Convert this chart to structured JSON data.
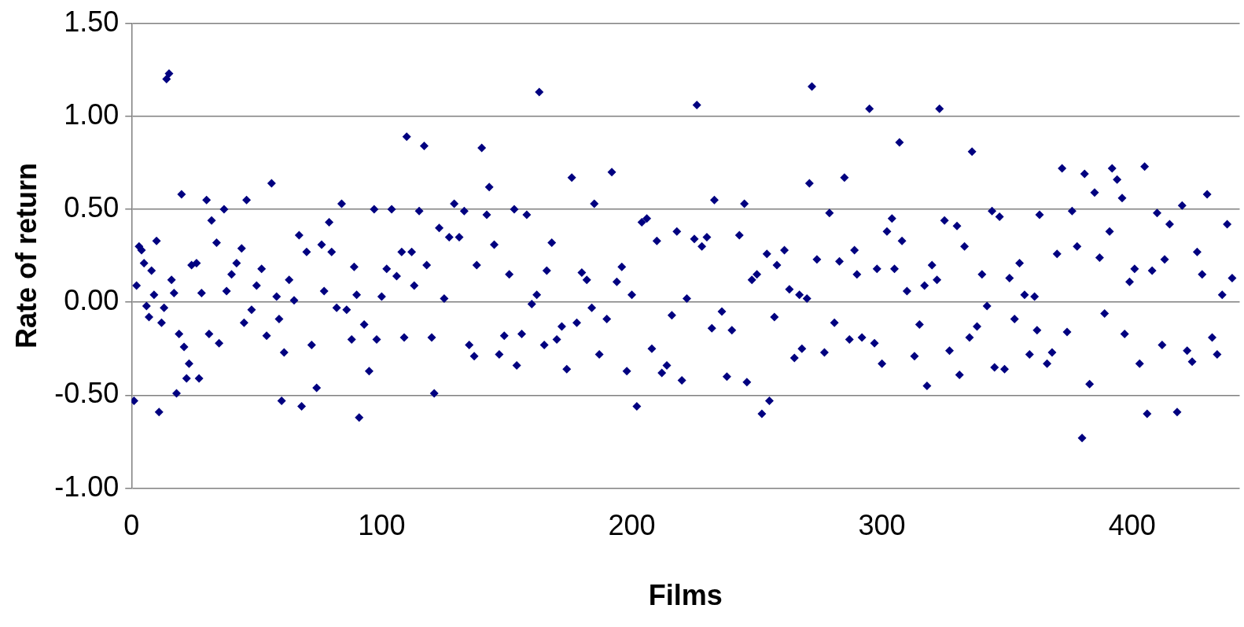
{
  "chart_data": {
    "type": "scatter",
    "xlabel": "Films",
    "ylabel": "Rate of return",
    "xlim": [
      0,
      443
    ],
    "xticks": [
      0,
      100,
      200,
      300,
      400
    ],
    "ylim": [
      -1,
      1.5
    ],
    "yticks": [
      {
        "value": -1,
        "label": "-1.00"
      },
      {
        "value": -0.5,
        "label": "-0.50"
      },
      {
        "value": 0,
        "label": "0.00"
      },
      {
        "value": 0.5,
        "label": "0.50"
      },
      {
        "value": 1,
        "label": "1.00"
      },
      {
        "value": 1.5,
        "label": "1.50"
      }
    ],
    "grid": "y",
    "legend": false,
    "marker": "diamond",
    "series": [
      {
        "color": "#000080",
        "x": [
          1,
          2,
          3,
          4,
          5,
          6,
          7,
          8,
          9,
          10,
          11,
          12,
          13,
          14,
          15,
          16,
          17,
          18,
          19,
          20,
          21,
          22,
          23,
          24,
          26,
          27,
          28,
          30,
          31,
          32,
          34,
          35,
          37,
          38,
          40,
          42,
          44,
          45,
          46,
          48,
          50,
          52,
          54,
          56,
          58,
          59,
          60,
          61,
          63,
          65,
          67,
          68,
          70,
          72,
          74,
          76,
          77,
          79,
          80,
          82,
          84,
          86,
          88,
          89,
          90,
          91,
          93,
          95,
          97,
          98,
          100,
          102,
          104,
          106,
          108,
          109,
          110,
          112,
          113,
          115,
          117,
          118,
          120,
          121,
          123,
          125,
          127,
          129,
          131,
          133,
          135,
          137,
          138,
          140,
          142,
          143,
          145,
          147,
          149,
          151,
          153,
          154,
          156,
          158,
          160,
          162,
          163,
          165,
          166,
          168,
          170,
          172,
          174,
          176,
          178,
          180,
          182,
          184,
          185,
          187,
          190,
          192,
          194,
          196,
          198,
          200,
          202,
          204,
          206,
          208,
          210,
          212,
          214,
          216,
          218,
          220,
          222,
          225,
          226,
          228,
          230,
          232,
          233,
          236,
          238,
          240,
          243,
          245,
          246,
          248,
          250,
          252,
          254,
          255,
          257,
          258,
          261,
          263,
          265,
          267,
          268,
          270,
          271,
          272,
          274,
          277,
          279,
          281,
          283,
          285,
          287,
          289,
          290,
          292,
          295,
          297,
          298,
          300,
          302,
          304,
          305,
          307,
          308,
          310,
          313,
          315,
          317,
          318,
          320,
          322,
          323,
          325,
          327,
          330,
          331,
          333,
          335,
          336,
          338,
          340,
          342,
          344,
          345,
          347,
          349,
          351,
          353,
          355,
          357,
          359,
          361,
          362,
          363,
          366,
          368,
          370,
          372,
          374,
          376,
          378,
          380,
          381,
          383,
          385,
          387,
          389,
          391,
          392,
          394,
          396,
          397,
          399,
          401,
          403,
          405,
          406,
          408,
          410,
          412,
          413,
          415,
          418,
          420,
          422,
          424,
          426,
          428,
          430,
          432,
          434,
          436,
          438,
          440
        ],
        "values": [
          -0.53,
          0.09,
          0.3,
          0.28,
          0.21,
          -0.02,
          -0.08,
          0.17,
          0.04,
          0.33,
          -0.59,
          -0.11,
          -0.03,
          1.2,
          1.23,
          0.12,
          0.05,
          -0.49,
          -0.17,
          0.58,
          -0.24,
          -0.41,
          -0.33,
          0.2,
          0.21,
          -0.41,
          0.05,
          0.55,
          -0.17,
          0.44,
          0.32,
          -0.22,
          0.5,
          0.06,
          0.15,
          0.21,
          0.29,
          -0.11,
          0.55,
          -0.04,
          0.09,
          0.18,
          -0.18,
          0.64,
          0.03,
          -0.09,
          -0.53,
          -0.27,
          0.12,
          0.01,
          0.36,
          -0.56,
          0.27,
          -0.23,
          -0.46,
          0.31,
          0.06,
          0.43,
          0.27,
          -0.03,
          0.53,
          -0.04,
          -0.2,
          0.19,
          0.04,
          -0.62,
          -0.12,
          -0.37,
          0.5,
          -0.2,
          0.03,
          0.18,
          0.5,
          0.14,
          0.27,
          -0.19,
          0.89,
          0.27,
          0.09,
          0.49,
          0.84,
          0.2,
          -0.19,
          -0.49,
          0.4,
          0.02,
          0.35,
          0.53,
          0.35,
          0.49,
          -0.23,
          -0.29,
          0.2,
          0.83,
          0.47,
          0.62,
          0.31,
          -0.28,
          -0.18,
          0.15,
          0.5,
          -0.34,
          -0.17,
          0.47,
          -0.01,
          0.04,
          1.13,
          -0.23,
          0.17,
          0.32,
          -0.2,
          -0.13,
          -0.36,
          0.67,
          -0.11,
          0.16,
          0.12,
          -0.03,
          0.53,
          -0.28,
          -0.09,
          0.7,
          0.11,
          0.19,
          -0.37,
          0.04,
          -0.56,
          0.43,
          0.45,
          -0.25,
          0.33,
          -0.38,
          -0.34,
          -0.07,
          0.38,
          -0.42,
          0.02,
          0.34,
          1.06,
          0.3,
          0.35,
          -0.14,
          0.55,
          -0.05,
          -0.4,
          -0.15,
          0.36,
          0.53,
          -0.43,
          0.12,
          0.15,
          -0.6,
          0.26,
          -0.53,
          -0.08,
          0.2,
          0.28,
          0.07,
          -0.3,
          0.04,
          -0.25,
          0.02,
          0.64,
          1.16,
          0.23,
          -0.27,
          0.48,
          -0.11,
          0.22,
          0.67,
          -0.2,
          0.28,
          0.15,
          -0.19,
          1.04,
          -0.22,
          0.18,
          -0.33,
          0.38,
          0.45,
          0.18,
          0.86,
          0.33,
          0.06,
          -0.29,
          -0.12,
          0.09,
          -0.45,
          0.2,
          0.12,
          1.04,
          0.44,
          -0.26,
          0.41,
          -0.39,
          0.3,
          -0.19,
          0.81,
          -0.13,
          0.15,
          -0.02,
          0.49,
          -0.35,
          0.46,
          -0.36,
          0.13,
          -0.09,
          0.21,
          0.04,
          -0.28,
          0.03,
          -0.15,
          0.47,
          -0.33,
          -0.27,
          0.26,
          0.72,
          -0.16,
          0.49,
          0.3,
          -0.73,
          0.69,
          -0.44,
          0.59,
          0.24,
          -0.06,
          0.38,
          0.72,
          0.66,
          0.56,
          -0.17,
          0.11,
          0.18,
          -0.33,
          0.73,
          -0.6,
          0.17,
          0.48,
          -0.23,
          0.23,
          0.42,
          -0.59,
          0.52,
          -0.26,
          -0.32,
          0.27,
          0.15,
          0.58,
          -0.19,
          -0.28,
          0.04,
          0.42,
          0.13
        ]
      }
    ]
  }
}
